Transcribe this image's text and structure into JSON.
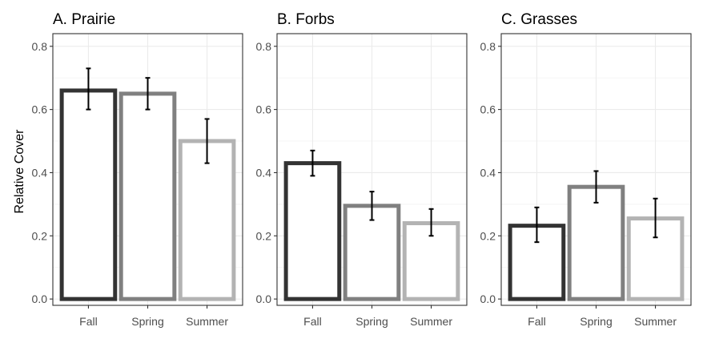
{
  "ylabel": "Relative Cover",
  "chart_data": [
    {
      "type": "bar",
      "title": "A. Prairie",
      "categories": [
        "Fall",
        "Spring",
        "Summer"
      ],
      "values": [
        0.66,
        0.65,
        0.5
      ],
      "error_low": [
        0.6,
        0.6,
        0.43
      ],
      "error_high": [
        0.73,
        0.7,
        0.57
      ],
      "ylim": [
        -0.02,
        0.84
      ],
      "yticks": [
        "0.0",
        "0.2",
        "0.4",
        "0.6",
        "0.8"
      ],
      "bar_colors": [
        "#333333",
        "#808080",
        "#b3b3b3"
      ],
      "grid": true
    },
    {
      "type": "bar",
      "title": "B. Forbs",
      "categories": [
        "Fall",
        "Spring",
        "Summer"
      ],
      "values": [
        0.43,
        0.295,
        0.24
      ],
      "error_low": [
        0.39,
        0.25,
        0.2
      ],
      "error_high": [
        0.47,
        0.34,
        0.285
      ],
      "ylim": [
        -0.02,
        0.84
      ],
      "yticks": [
        "0.0",
        "0.2",
        "0.4",
        "0.6",
        "0.8"
      ],
      "bar_colors": [
        "#333333",
        "#808080",
        "#b3b3b3"
      ],
      "grid": true
    },
    {
      "type": "bar",
      "title": "C. Grasses",
      "categories": [
        "Fall",
        "Spring",
        "Summer"
      ],
      "values": [
        0.232,
        0.355,
        0.255
      ],
      "error_low": [
        0.18,
        0.305,
        0.195
      ],
      "error_high": [
        0.29,
        0.405,
        0.318
      ],
      "ylim": [
        -0.02,
        0.84
      ],
      "yticks": [
        "0.0",
        "0.2",
        "0.4",
        "0.6",
        "0.8"
      ],
      "bar_colors": [
        "#333333",
        "#808080",
        "#b3b3b3"
      ],
      "grid": true
    }
  ]
}
